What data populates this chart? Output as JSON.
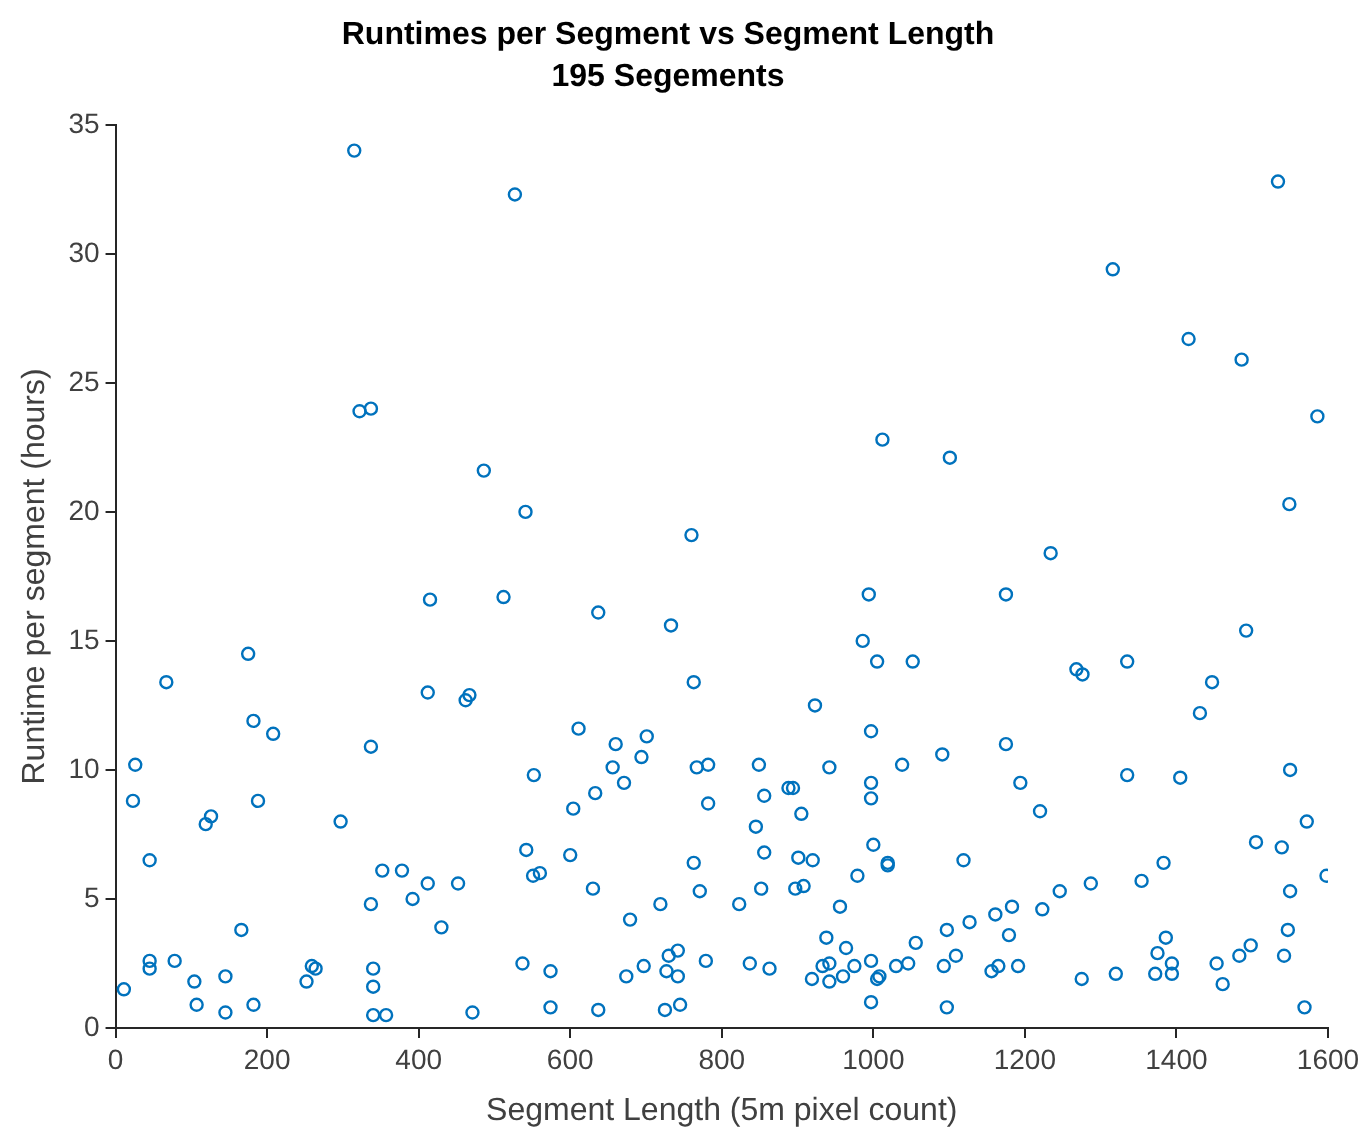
{
  "chart_data": {
    "type": "scatter",
    "title": "Runtimes per Segment vs Segment Length",
    "subtitle": "195 Segements",
    "xlabel": "Segment Length (5m pixel count)",
    "ylabel": "Runtime per segment (hours)",
    "xlim": [
      0,
      1600
    ],
    "xticks": [
      0,
      200,
      400,
      600,
      800,
      1000,
      1200,
      1400,
      1600
    ],
    "ylim": [
      0,
      35
    ],
    "yticks": [
      0,
      5,
      10,
      15,
      20,
      25,
      30,
      35
    ],
    "marker": "circle",
    "series": [
      {
        "color": "#0072bd",
        "x": [
          315,
          527,
          322,
          337,
          486,
          541,
          760,
          1534,
          1316,
          1416,
          1486,
          1586,
          1549,
          1012,
          1101,
          1234,
          415,
          412,
          462,
          467,
          175,
          67,
          26,
          23,
          182,
          208,
          337,
          119,
          126,
          188,
          297,
          45,
          352,
          378,
          392,
          412,
          452,
          337,
          430,
          166,
          11,
          45,
          45,
          78,
          104,
          107,
          145,
          145,
          182,
          252,
          259,
          264,
          340,
          340,
          340,
          357,
          471,
          512,
          637,
          733,
          994,
          986,
          1005,
          1052,
          763,
          923,
          611,
          660,
          701,
          997,
          552,
          656,
          694,
          633,
          671,
          767,
          782,
          849,
          942,
          1038,
          604,
          782,
          856,
          888,
          894,
          997,
          997,
          905,
          845,
          1000,
          542,
          600,
          763,
          856,
          901,
          920,
          1019,
          1019,
          551,
          560,
          630,
          771,
          852,
          897,
          908,
          979,
          679,
          719,
          823,
          956,
          938,
          964,
          1056,
          537,
          574,
          674,
          697,
          727,
          730,
          742,
          742,
          779,
          837,
          863,
          919,
          933,
          942,
          942,
          960,
          975,
          997,
          1005,
          1008,
          1030,
          1046,
          574,
          637,
          725,
          745,
          997,
          1175,
          1492,
          1268,
          1276,
          1335,
          1447,
          1431,
          1091,
          1175,
          1194,
          1335,
          1405,
          1550,
          1220,
          1572,
          1505,
          1539,
          1119,
          1383,
          1354,
          1287,
          1598,
          1550,
          1246,
          1183,
          1161,
          1223,
          1127,
          1097,
          1179,
          1386,
          1547,
          1093,
          1109,
          1156,
          1165,
          1191,
          1275,
          1320,
          1375,
          1394,
          1372,
          1394,
          1453,
          1461,
          1483,
          1498,
          1542,
          1097,
          1569
        ],
        "values": [
          34.0,
          32.3,
          23.9,
          24.0,
          21.6,
          20.0,
          19.1,
          32.8,
          29.4,
          26.7,
          25.9,
          23.7,
          20.3,
          22.8,
          22.1,
          18.4,
          16.6,
          13.0,
          12.7,
          12.9,
          14.5,
          13.4,
          10.2,
          8.8,
          11.9,
          11.4,
          10.9,
          7.9,
          8.2,
          8.8,
          8.0,
          6.5,
          6.1,
          6.1,
          5.0,
          5.6,
          5.6,
          4.8,
          3.9,
          3.8,
          1.5,
          2.6,
          2.3,
          2.6,
          1.8,
          0.9,
          2.0,
          0.6,
          0.9,
          1.8,
          2.4,
          2.3,
          2.3,
          1.6,
          0.5,
          0.5,
          0.6,
          16.7,
          16.1,
          15.6,
          16.8,
          15.0,
          14.2,
          14.2,
          13.4,
          12.5,
          11.6,
          11.0,
          11.3,
          11.5,
          9.8,
          10.1,
          10.5,
          9.1,
          9.5,
          10.1,
          10.2,
          10.2,
          10.1,
          10.2,
          8.5,
          8.7,
          9.0,
          9.3,
          9.3,
          9.5,
          8.9,
          8.3,
          7.8,
          7.1,
          6.9,
          6.7,
          6.4,
          6.8,
          6.6,
          6.5,
          6.4,
          6.3,
          5.9,
          6.0,
          5.4,
          5.3,
          5.4,
          5.4,
          5.5,
          5.9,
          4.2,
          4.8,
          4.8,
          4.7,
          3.5,
          3.1,
          3.3,
          2.5,
          2.2,
          2.0,
          2.4,
          2.2,
          2.8,
          3.0,
          2.0,
          2.6,
          2.5,
          2.3,
          1.9,
          2.4,
          2.5,
          1.8,
          2.0,
          2.4,
          2.6,
          1.9,
          2.0,
          2.4,
          2.5,
          0.8,
          0.7,
          0.7,
          0.9,
          1.0,
          16.8,
          15.4,
          13.9,
          13.7,
          14.2,
          13.4,
          12.2,
          10.6,
          11.0,
          9.5,
          9.8,
          9.7,
          10.0,
          8.4,
          8.0,
          7.2,
          7.0,
          6.5,
          6.4,
          5.7,
          5.6,
          5.9,
          5.3,
          5.3,
          4.7,
          4.4,
          4.6,
          4.1,
          3.8,
          3.6,
          3.5,
          3.8,
          2.4,
          2.8,
          2.2,
          2.4,
          2.4,
          1.9,
          2.1,
          2.9,
          2.5,
          2.1,
          2.1,
          2.5,
          1.7,
          2.8,
          3.2,
          2.8,
          0.8,
          0.8
        ]
      }
    ]
  }
}
